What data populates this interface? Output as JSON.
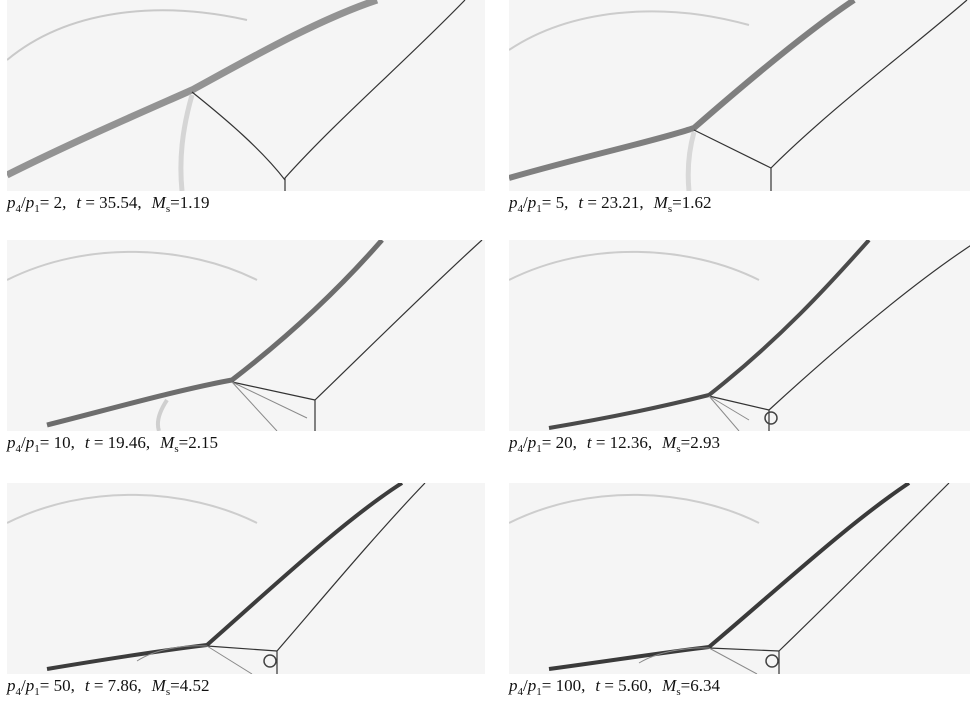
{
  "figure": {
    "panels": [
      {
        "ratio": "2",
        "t": "35.54",
        "ms": "1.19"
      },
      {
        "ratio": "5",
        "t": "23.21",
        "ms": "1.62"
      },
      {
        "ratio": "10",
        "t": "19.46",
        "ms": "2.15"
      },
      {
        "ratio": "20",
        "t": "12.36",
        "ms": "2.93"
      },
      {
        "ratio": "50",
        "t": "7.86",
        "ms": "4.52"
      },
      {
        "ratio": "100",
        "t": "5.60",
        "ms": "6.34"
      }
    ],
    "labels": {
      "p": "p",
      "sub4": "4",
      "slash": "/",
      "sub1": "1",
      "t": "t",
      "m": "M",
      "subs": "s",
      "eq": "=",
      "comma": ","
    },
    "colors": {
      "background": "#f5f5f5",
      "shock": "#2a2a2a",
      "contact": "#444444"
    }
  }
}
